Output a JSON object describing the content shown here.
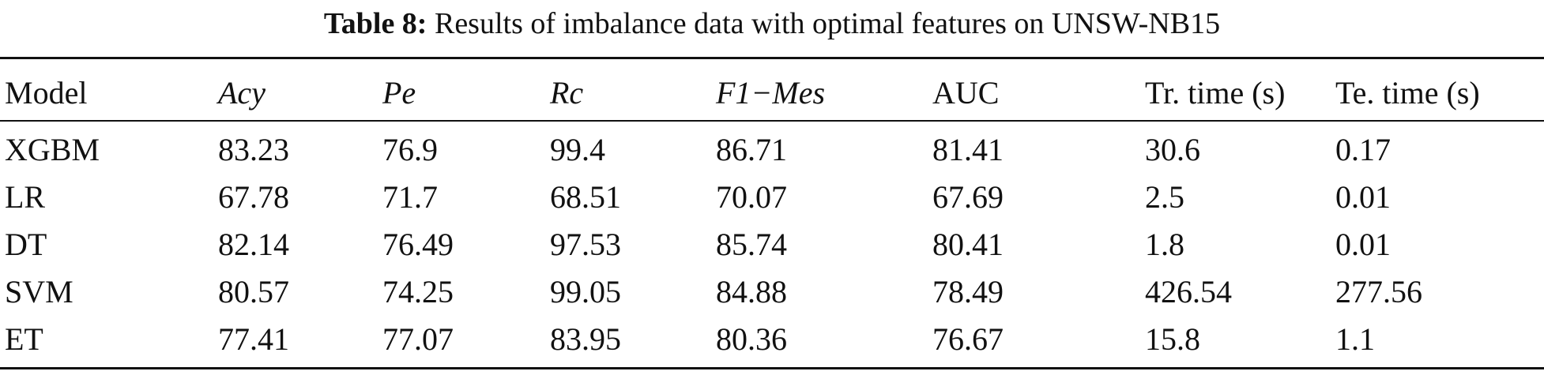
{
  "caption": {
    "label": "Table 8:",
    "text": "Results of imbalance data with optimal features on UNSW-NB15"
  },
  "table": {
    "headers": [
      {
        "text": "Model",
        "italic": false
      },
      {
        "text": "Acy",
        "italic": true
      },
      {
        "text": "Pe",
        "italic": true
      },
      {
        "text": "Rc",
        "italic": true
      },
      {
        "text": "F1−Mes",
        "italic": true
      },
      {
        "text": "AUC",
        "italic": false
      },
      {
        "text": "Tr. time (s)",
        "italic": false
      },
      {
        "text": "Te. time (s)",
        "italic": false
      }
    ],
    "rows": [
      [
        "XGBM",
        "83.23",
        "76.9",
        "99.4",
        "86.71",
        "81.41",
        "30.6",
        "0.17"
      ],
      [
        "LR",
        "67.78",
        "71.7",
        "68.51",
        "70.07",
        "67.69",
        "2.5",
        "0.01"
      ],
      [
        "DT",
        "82.14",
        "76.49",
        "97.53",
        "85.74",
        "80.41",
        "1.8",
        "0.01"
      ],
      [
        "SVM",
        "80.57",
        "74.25",
        "99.05",
        "84.88",
        "78.49",
        "426.54",
        "277.56"
      ],
      [
        "ET",
        "77.41",
        "77.07",
        "83.95",
        "80.36",
        "76.67",
        "15.8",
        "1.1"
      ]
    ]
  }
}
